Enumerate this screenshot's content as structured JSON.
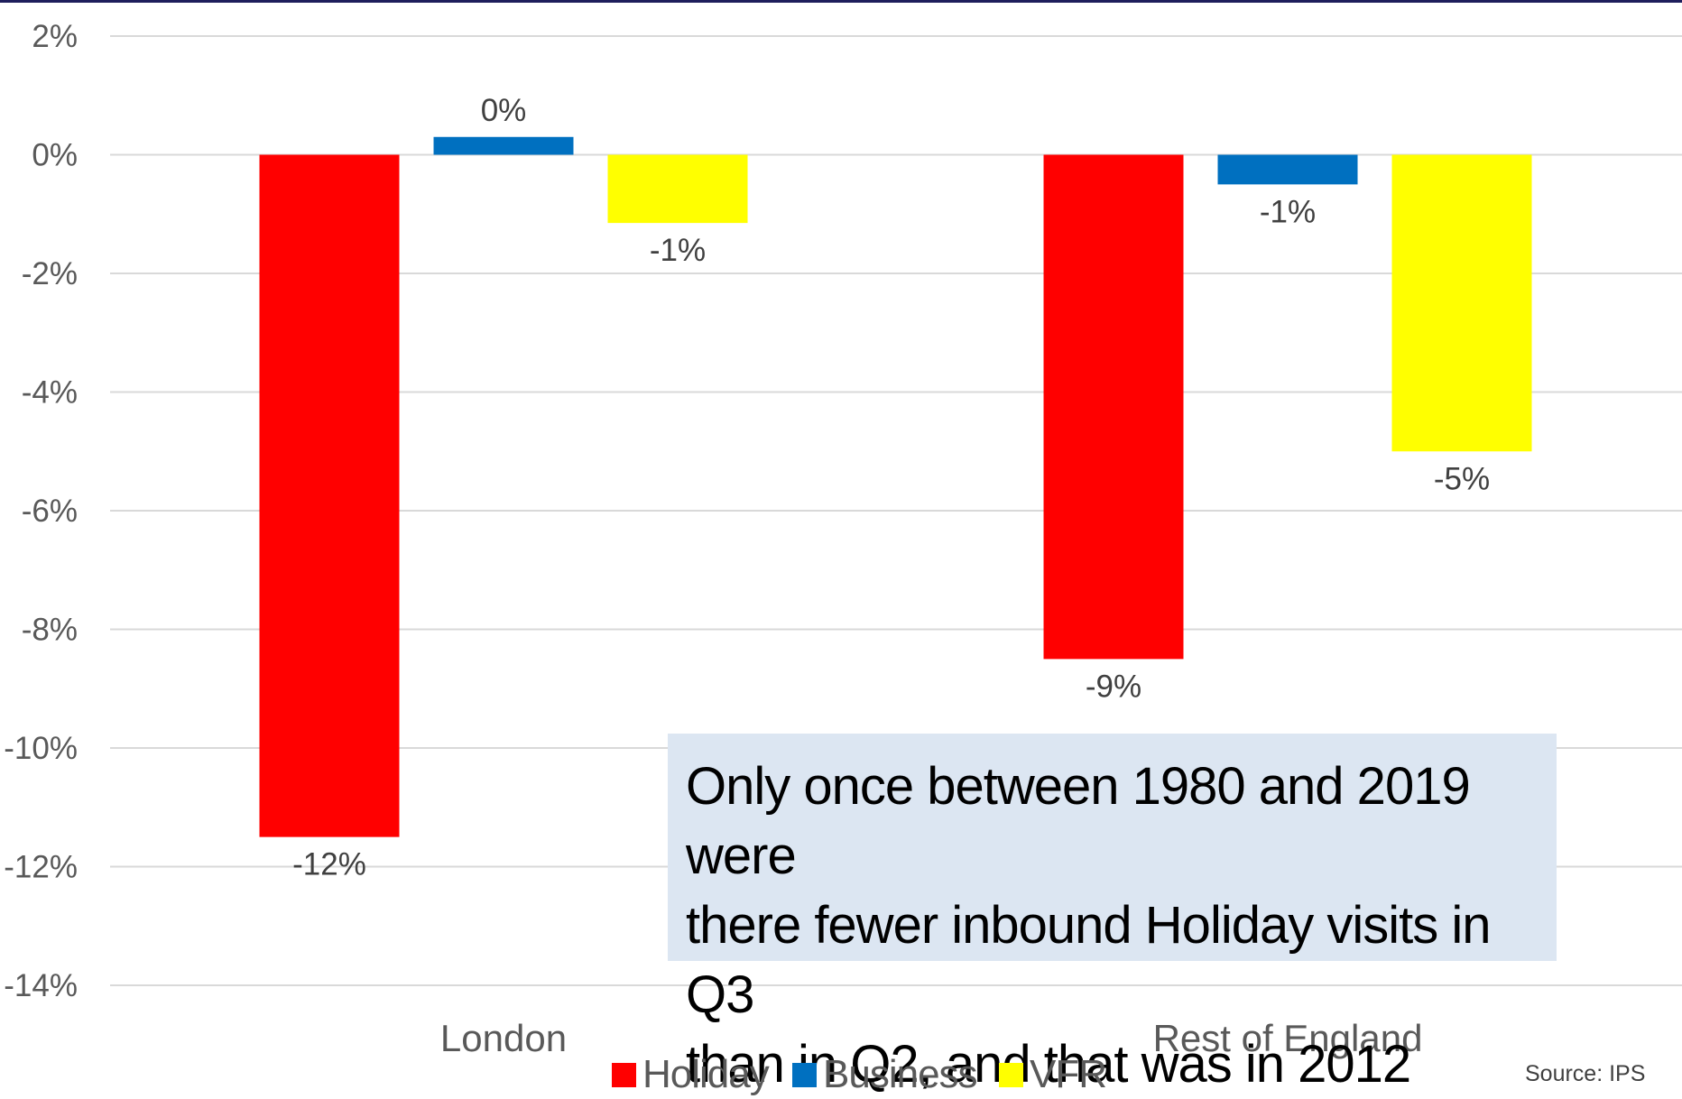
{
  "chart_data": {
    "type": "bar",
    "categories": [
      "London",
      "Rest of England"
    ],
    "series": [
      {
        "name": "Holiday",
        "color": "#ff0000",
        "values": [
          -11.5,
          -8.5
        ],
        "labels": [
          "-12%",
          "-9%"
        ]
      },
      {
        "name": "Business",
        "color": "#0070c0",
        "values": [
          0.3,
          -0.5
        ],
        "labels": [
          "0%",
          "-1%"
        ]
      },
      {
        "name": "VFR",
        "color": "#ffff00",
        "values": [
          -1.15,
          -5.0
        ],
        "labels": [
          "-1%",
          "-5%"
        ]
      }
    ],
    "ylim": [
      -14,
      2
    ],
    "yticks": [
      2,
      0,
      -2,
      -4,
      -6,
      -8,
      -10,
      -12,
      -14
    ],
    "ytick_labels": [
      "2%",
      "0%",
      "-2%",
      "-4%",
      "-6%",
      "-8%",
      "-10%",
      "-12%",
      "-14%"
    ],
    "grid": true,
    "legend_position": "bottom"
  },
  "annotation": {
    "lines": [
      "Only once between 1980 and 2019 were",
      "there fewer inbound Holiday visits in Q3",
      "than in Q2, and that was in 2012"
    ]
  },
  "source": "Source: IPS"
}
